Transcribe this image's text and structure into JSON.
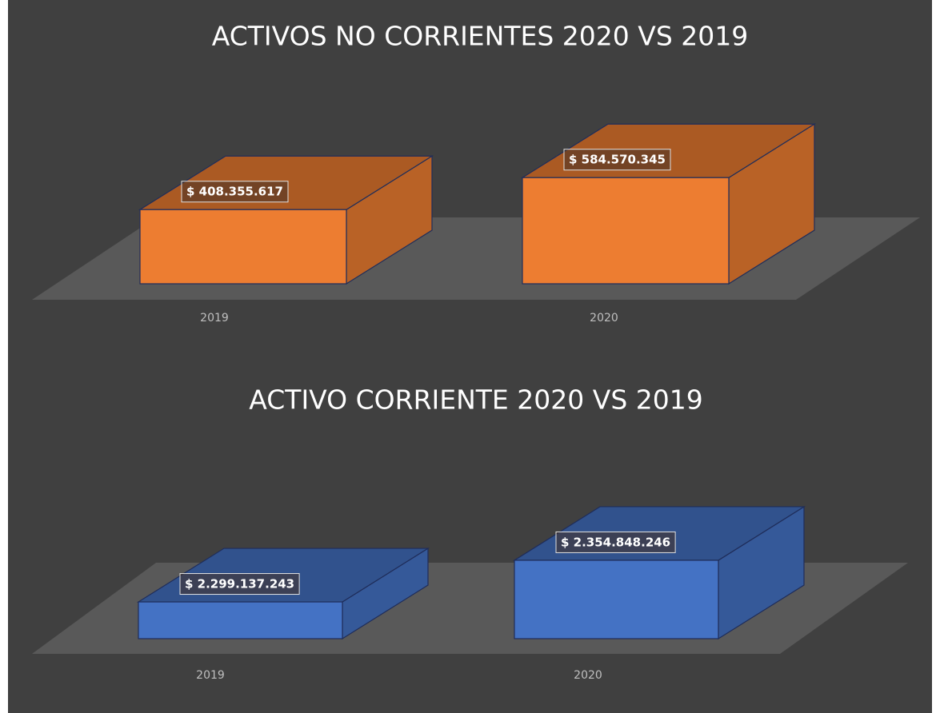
{
  "chart_data": [
    {
      "type": "bar3d",
      "title": "ACTIVOS NO CORRIENTES 2020 VS 2019",
      "categories": [
        "2019",
        "2020"
      ],
      "values": [
        408355617,
        584570345
      ],
      "value_labels": [
        "$ 408.355.617",
        "$ 584.570.345"
      ],
      "color": "#ed7d31",
      "ylim": [
        0,
        700000000
      ]
    },
    {
      "type": "bar3d",
      "title": "ACTIVO CORRIENTE 2020 VS 2019",
      "categories": [
        "2019",
        "2020"
      ],
      "values": [
        2299137243,
        2354848246
      ],
      "value_labels": [
        "$ 2.299.137.243",
        "$ 2.354.848.246"
      ],
      "color": "#4472c4",
      "ylim": [
        2250000000,
        2420000000
      ]
    }
  ]
}
